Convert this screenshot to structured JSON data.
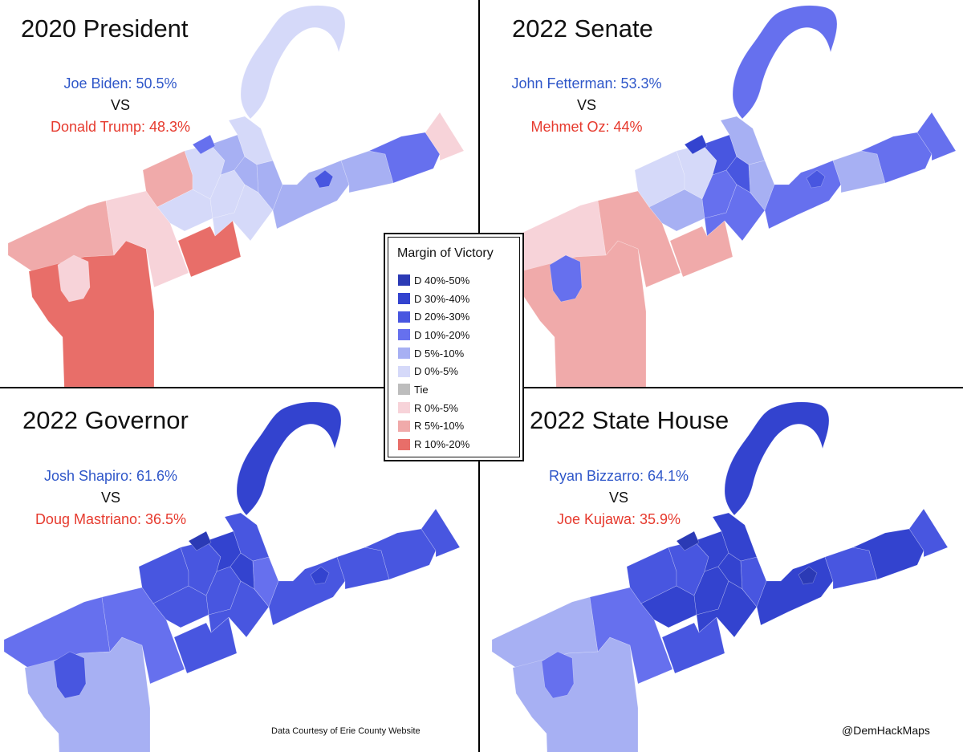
{
  "colors": {
    "D40": "#2b3ab5",
    "D30": "#3343cf",
    "D20": "#4856e0",
    "D10": "#6670ee",
    "D5": "#a7b0f3",
    "D0": "#d5d9f9",
    "Tie": "#bdbdbd",
    "R0": "#f7d3d9",
    "R5": "#f0aaaa",
    "R10": "#e86e69"
  },
  "panels": [
    {
      "title": "2020 President",
      "dem": "Joe Biden: 50.5%",
      "vs": "VS",
      "rep": "Donald Trump: 48.3%",
      "shading": {
        "peninsula": "D0",
        "farWest": "R5",
        "westSouth": "R10",
        "westHole": "R0",
        "westMid": "R0",
        "wMidNorth": "R5",
        "cityW1": "D0",
        "cityW2": "D0",
        "midPocket": "R10",
        "cityC1": "D5",
        "cityC2": "D0",
        "cityC3": "D5",
        "cityC4": "D0",
        "cityEcol": "D5",
        "cityE": "D0",
        "east1": "D5",
        "east2": "D5",
        "eastSpot": "D20",
        "farEast": "D10",
        "farEastTip": "R0",
        "cityN": "D10"
      }
    },
    {
      "title": "2022 Senate",
      "dem": "John Fetterman: 53.3%",
      "vs": "VS",
      "rep": "Mehmet Oz: 44%",
      "shading": {
        "peninsula": "D10",
        "farWest": "R0",
        "westSouth": "R5",
        "westHole": "D10",
        "westMid": "R5",
        "wMidNorth": "D0",
        "cityW1": "D5",
        "cityW2": "D0",
        "midPocket": "R5",
        "cityC1": "D20",
        "cityC2": "D10",
        "cityC3": "D20",
        "cityC4": "D10",
        "cityEcol": "D5",
        "cityE": "D5",
        "east1": "D10",
        "east2": "D5",
        "eastSpot": "D20",
        "farEast": "D10",
        "farEastTip": "D10",
        "cityN": "D30"
      }
    },
    {
      "title": "2022 Governor",
      "dem": "Josh Shapiro: 61.6%",
      "vs": "VS",
      "rep": "Doug Mastriano: 36.5%",
      "shading": {
        "peninsula": "D30",
        "farWest": "D10",
        "westSouth": "D5",
        "westHole": "D20",
        "westMid": "D10",
        "wMidNorth": "D20",
        "cityW1": "D20",
        "cityW2": "D20",
        "midPocket": "D20",
        "cityC1": "D30",
        "cityC2": "D20",
        "cityC3": "D30",
        "cityC4": "D20",
        "cityEcol": "D10",
        "cityE": "D20",
        "east1": "D20",
        "east2": "D20",
        "eastSpot": "D30",
        "farEast": "D20",
        "farEastTip": "D20",
        "cityN": "D40"
      }
    },
    {
      "title": "2022 State House",
      "dem": "Ryan Bizzarro: 64.1%",
      "vs": "VS",
      "rep": "Joe Kujawa: 35.9%",
      "shading": {
        "peninsula": "D30",
        "farWest": "D5",
        "westSouth": "D5",
        "westHole": "D10",
        "westMid": "D10",
        "wMidNorth": "D20",
        "cityW1": "D30",
        "cityW2": "D20",
        "midPocket": "D20",
        "cityC1": "D30",
        "cityC2": "D30",
        "cityC3": "D30",
        "cityC4": "D30",
        "cityEcol": "D20",
        "cityE": "D30",
        "east1": "D30",
        "east2": "D20",
        "eastSpot": "D40",
        "farEast": "D30",
        "farEastTip": "D20",
        "cityN": "D40"
      }
    }
  ],
  "legend": {
    "title": "Margin of Victory",
    "items": [
      {
        "label": "D 40%-50%",
        "color": "#2b3ab5"
      },
      {
        "label": "D 30%-40%",
        "color": "#3343cf"
      },
      {
        "label": "D 20%-30%",
        "color": "#4856e0"
      },
      {
        "label": "D 10%-20%",
        "color": "#6670ee"
      },
      {
        "label": "D 5%-10%",
        "color": "#a7b0f3"
      },
      {
        "label": "D 0%-5%",
        "color": "#d5d9f9"
      },
      {
        "label": "Tie",
        "color": "#bdbdbd"
      },
      {
        "label": "R 0%-5%",
        "color": "#f7d3d9"
      },
      {
        "label": "R 5%-10%",
        "color": "#f0aaaa"
      },
      {
        "label": "R 10%-20%",
        "color": "#e86e69"
      }
    ]
  },
  "footnote": "Data Courtesy of Erie County Website",
  "credit": "@DemHackMaps"
}
